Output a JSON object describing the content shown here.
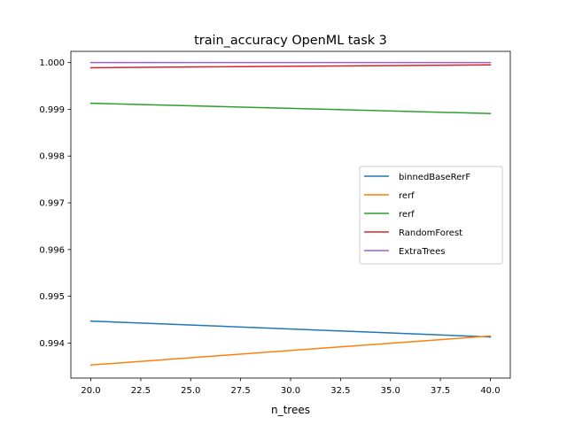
{
  "chart_data": {
    "type": "line",
    "title": "train_accuracy OpenML task 3",
    "xlabel": "n_trees",
    "ylabel": "",
    "x": [
      20,
      40
    ],
    "xlim": [
      19,
      41
    ],
    "ylim": [
      0.99325,
      1.00024
    ],
    "xticks": [
      "20.0",
      "22.5",
      "25.0",
      "27.5",
      "30.0",
      "32.5",
      "35.0",
      "37.5",
      "40.0"
    ],
    "yticks": [
      "0.994",
      "0.995",
      "0.996",
      "0.997",
      "0.998",
      "0.999",
      "1.000"
    ],
    "grid": false,
    "legend_position": "center-right",
    "series": [
      {
        "name": "binnedBaseRerF",
        "color": "#1f77b4",
        "values": [
          0.99447,
          0.99413
        ]
      },
      {
        "name": "rerf",
        "color": "#ff7f0e",
        "values": [
          0.99353,
          0.99415
        ]
      },
      {
        "name": "rerf",
        "color": "#2ca02c",
        "values": [
          0.99913,
          0.99891
        ]
      },
      {
        "name": "RandomForest",
        "color": "#d62728",
        "values": [
          0.99989,
          0.99995
        ]
      },
      {
        "name": "ExtraTrees",
        "color": "#9467bd",
        "values": [
          1.0,
          1.0
        ]
      }
    ]
  }
}
